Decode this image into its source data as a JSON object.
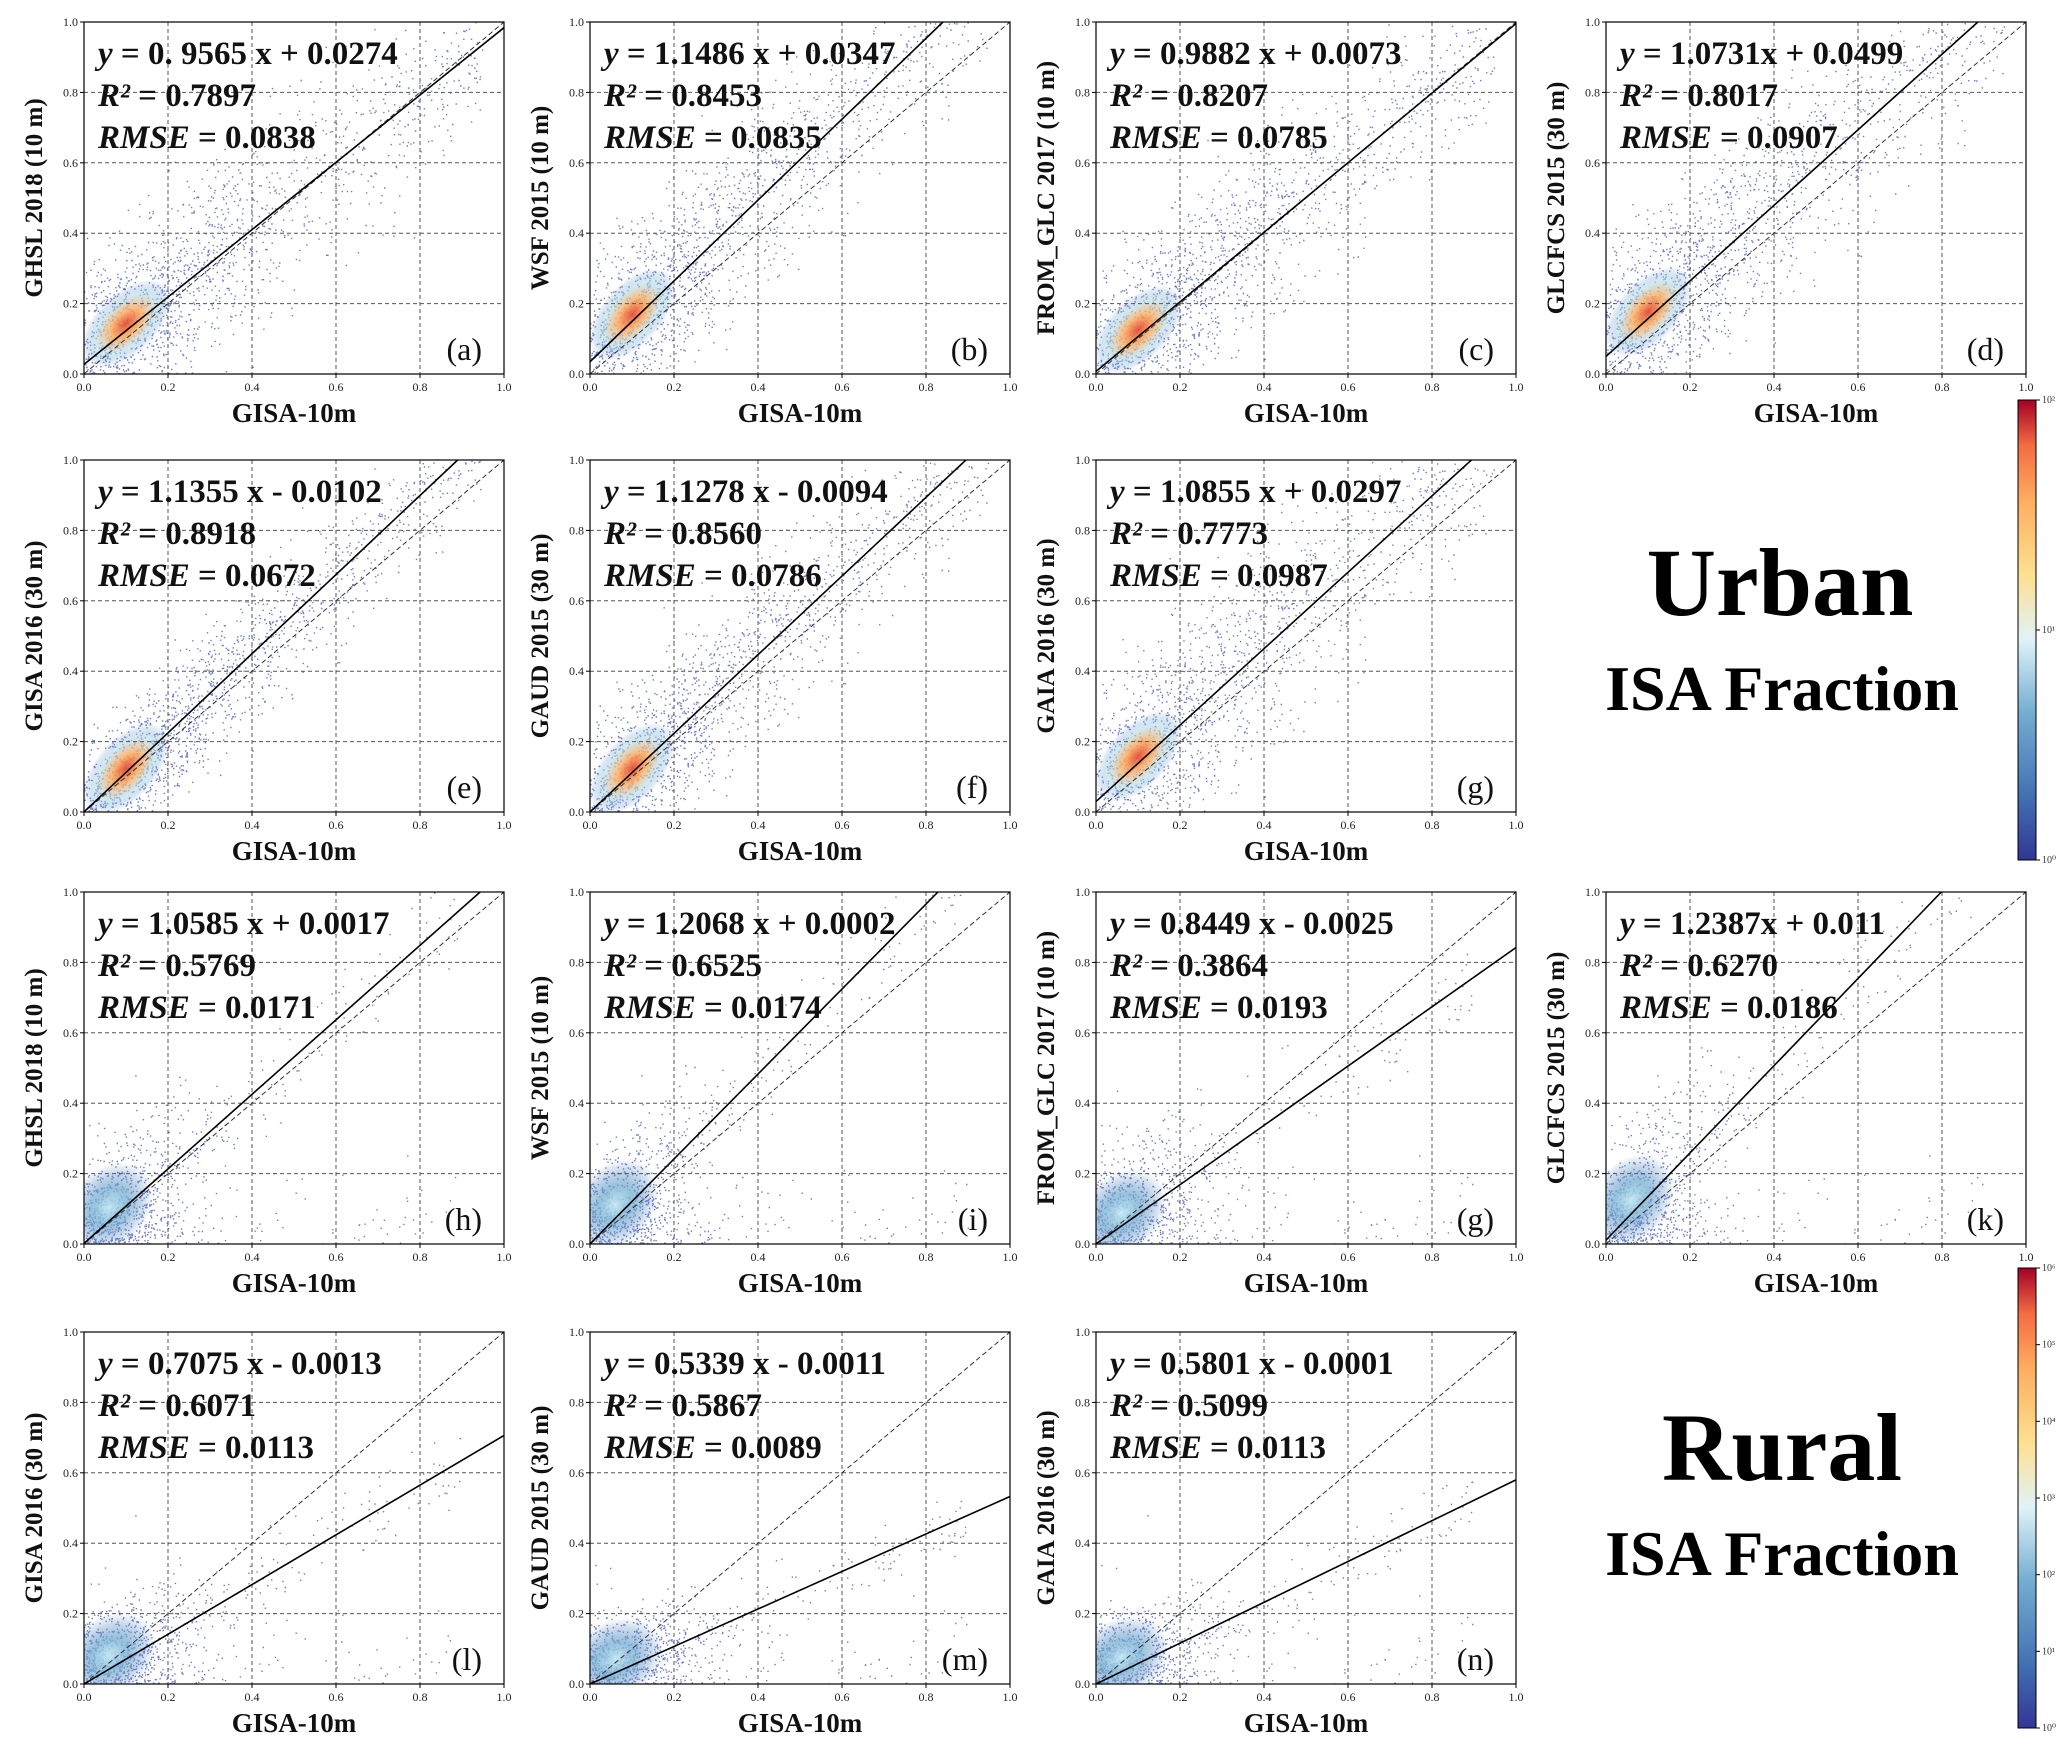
{
  "chart_data": [
    {
      "type": "scatter",
      "panel_label": "(a)",
      "ylabel": "GHSL 2018 (10 m)",
      "xlabel": "GISA-10m",
      "xlim": [
        0,
        1
      ],
      "ylim": [
        0,
        1
      ],
      "grid": true,
      "eq_lhs": "y",
      "eq_rhs": " = 0. 9565 x + 0.0274",
      "r2_lhs": "R²",
      "r2_rhs": " = 0.7897",
      "rmse_lhs": "RMSE",
      "rmse_rhs": " = 0.0838",
      "slope": 0.9565,
      "intercept": 0.0274,
      "density_group": "urban",
      "spread": 0.13
    },
    {
      "type": "scatter",
      "panel_label": "(b)",
      "ylabel": "WSF 2015 (10 m)",
      "xlabel": "GISA-10m",
      "xlim": [
        0,
        1
      ],
      "ylim": [
        0,
        1
      ],
      "grid": true,
      "eq_lhs": "y",
      "eq_rhs": " = 1.1486 x + 0.0347",
      "r2_lhs": "R²",
      "r2_rhs": " = 0.8453",
      "rmse_lhs": "RMSE",
      "rmse_rhs": " = 0.0835",
      "slope": 1.1486,
      "intercept": 0.0347,
      "density_group": "urban",
      "spread": 0.12
    },
    {
      "type": "scatter",
      "panel_label": "(c)",
      "ylabel": "FROM_GLC 2017 (10 m)",
      "xlabel": "GISA-10m",
      "xlim": [
        0,
        1
      ],
      "ylim": [
        0,
        1
      ],
      "grid": true,
      "eq_lhs": "y",
      "eq_rhs": " = 0.9882 x + 0.0073",
      "r2_lhs": "R²",
      "r2_rhs": " = 0.8207",
      "rmse_lhs": "RMSE",
      "rmse_rhs": " = 0.0785",
      "slope": 0.9882,
      "intercept": 0.0073,
      "density_group": "urban",
      "spread": 0.12
    },
    {
      "type": "scatter",
      "panel_label": "(d)",
      "ylabel": "GLCFCS 2015 (30 m)",
      "xlabel": "GISA-10m",
      "xlim": [
        0,
        1
      ],
      "ylim": [
        0,
        1
      ],
      "grid": true,
      "eq_lhs": "y",
      "eq_rhs": " = 1.0731x + 0.0499",
      "r2_lhs": "R²",
      "r2_rhs": " = 0.8017",
      "rmse_lhs": "RMSE",
      "rmse_rhs": " = 0.0907",
      "slope": 1.0731,
      "intercept": 0.0499,
      "density_group": "urban",
      "spread": 0.13
    },
    {
      "type": "scatter",
      "panel_label": "(e)",
      "ylabel": "GISA 2016 (30 m)",
      "xlabel": "GISA-10m",
      "xlim": [
        0,
        1
      ],
      "ylim": [
        0,
        1
      ],
      "grid": true,
      "eq_lhs": "y",
      "eq_rhs": " = 1.1355 x - 0.0102",
      "r2_lhs": "R²",
      "r2_rhs": " = 0.8918",
      "rmse_lhs": "RMSE",
      "rmse_rhs": " = 0.0672",
      "slope": 1.1355,
      "intercept": -0.0102,
      "density_group": "urban",
      "spread": 0.09
    },
    {
      "type": "scatter",
      "panel_label": "(f)",
      "ylabel": "GAUD 2015 (30 m)",
      "xlabel": "GISA-10m",
      "xlim": [
        0,
        1
      ],
      "ylim": [
        0,
        1
      ],
      "grid": true,
      "eq_lhs": "y",
      "eq_rhs": " = 1.1278 x - 0.0094",
      "r2_lhs": "R²",
      "r2_rhs": " = 0.8560",
      "rmse_lhs": "RMSE",
      "rmse_rhs": " = 0.0786",
      "slope": 1.1278,
      "intercept": -0.0094,
      "density_group": "urban",
      "spread": 0.11
    },
    {
      "type": "scatter",
      "panel_label": "(g)",
      "ylabel": "GAIA 2016 (30 m)",
      "xlabel": "GISA-10m",
      "xlim": [
        0,
        1
      ],
      "ylim": [
        0,
        1
      ],
      "grid": true,
      "eq_lhs": "y",
      "eq_rhs": " = 1.0855 x + 0.0297",
      "r2_lhs": "R²",
      "r2_rhs": " = 0.7773",
      "rmse_lhs": "RMSE",
      "rmse_rhs": " = 0.0987",
      "slope": 1.0855,
      "intercept": 0.0297,
      "density_group": "urban",
      "spread": 0.14
    },
    {
      "type": "scatter",
      "panel_label": "(h)",
      "ylabel": "GHSL 2018 (10 m)",
      "xlabel": "GISA-10m",
      "xlim": [
        0,
        1
      ],
      "ylim": [
        0,
        1
      ],
      "grid": true,
      "eq_lhs": "y",
      "eq_rhs": " = 1.0585 x + 0.0017",
      "r2_lhs": "R²",
      "r2_rhs": " = 0.5769",
      "rmse_lhs": "RMSE",
      "rmse_rhs": " = 0.0171",
      "slope": 1.0585,
      "intercept": 0.0017,
      "density_group": "rural",
      "spread": 0.07
    },
    {
      "type": "scatter",
      "panel_label": "(i)",
      "ylabel": "WSF 2015 (10 m)",
      "xlabel": "GISA-10m",
      "xlim": [
        0,
        1
      ],
      "ylim": [
        0,
        1
      ],
      "grid": true,
      "eq_lhs": "y",
      "eq_rhs": " = 1.2068 x + 0.0002",
      "r2_lhs": "R²",
      "r2_rhs": " = 0.6525",
      "rmse_lhs": "RMSE",
      "rmse_rhs": " = 0.0174",
      "slope": 1.2068,
      "intercept": 0.0002,
      "density_group": "rural",
      "spread": 0.07
    },
    {
      "type": "scatter",
      "panel_label": "(g)",
      "ylabel": "FROM_GLC 2017 (10 m)",
      "xlabel": "GISA-10m",
      "xlim": [
        0,
        1
      ],
      "ylim": [
        0,
        1
      ],
      "grid": true,
      "eq_lhs": "y",
      "eq_rhs": " = 0.8449 x - 0.0025",
      "r2_lhs": "R²",
      "r2_rhs": " = 0.3864",
      "rmse_lhs": "RMSE",
      "rmse_rhs": " = 0.0193",
      "slope": 0.8449,
      "intercept": -0.0025,
      "density_group": "rural",
      "spread": 0.08
    },
    {
      "type": "scatter",
      "panel_label": "(k)",
      "ylabel": "GLCFCS 2015 (30 m)",
      "xlabel": "GISA-10m",
      "xlim": [
        0,
        1
      ],
      "ylim": [
        0,
        1
      ],
      "grid": true,
      "eq_lhs": "y",
      "eq_rhs": " = 1.2387x + 0.011",
      "r2_lhs": "R²",
      "r2_rhs": " = 0.6270",
      "rmse_lhs": "RMSE",
      "rmse_rhs": " = 0.0186",
      "slope": 1.2387,
      "intercept": 0.011,
      "density_group": "rural",
      "spread": 0.08
    },
    {
      "type": "scatter",
      "panel_label": "(l)",
      "ylabel": "GISA 2016 (30 m)",
      "xlabel": "GISA-10m",
      "xlim": [
        0,
        1
      ],
      "ylim": [
        0,
        1
      ],
      "grid": true,
      "eq_lhs": "y",
      "eq_rhs": " = 0.7075 x - 0.0013",
      "r2_lhs": "R²",
      "r2_rhs": " = 0.6071",
      "rmse_lhs": "RMSE",
      "rmse_rhs": " = 0.0113",
      "slope": 0.7075,
      "intercept": -0.0013,
      "density_group": "rural",
      "spread": 0.06
    },
    {
      "type": "scatter",
      "panel_label": "(m)",
      "ylabel": "GAUD 2015 (30 m)",
      "xlabel": "GISA-10m",
      "xlim": [
        0,
        1
      ],
      "ylim": [
        0,
        1
      ],
      "grid": true,
      "eq_lhs": "y",
      "eq_rhs": " = 0.5339 x - 0.0011",
      "r2_lhs": "R²",
      "r2_rhs": " = 0.5867",
      "rmse_lhs": "RMSE",
      "rmse_rhs": " = 0.0089",
      "slope": 0.5339,
      "intercept": -0.0011,
      "density_group": "rural",
      "spread": 0.05
    },
    {
      "type": "scatter",
      "panel_label": "(n)",
      "ylabel": "GAIA 2016 (30 m)",
      "xlabel": "GISA-10m",
      "xlim": [
        0,
        1
      ],
      "ylim": [
        0,
        1
      ],
      "grid": true,
      "eq_lhs": "y",
      "eq_rhs": " = 0.5801 x - 0.0001",
      "r2_lhs": "R²",
      "r2_rhs": " = 0.5099",
      "rmse_lhs": "RMSE",
      "rmse_rhs": " = 0.0113",
      "slope": 0.5801,
      "intercept": -0.0001,
      "density_group": "rural",
      "spread": 0.05
    }
  ],
  "ticks": [
    "0.0",
    "0.2",
    "0.4",
    "0.6",
    "0.8",
    "1.0"
  ],
  "colorbars": [
    {
      "scale": "log",
      "ticks": [
        "10⁰",
        "10¹",
        "10²"
      ]
    },
    {
      "scale": "log",
      "ticks": [
        "10⁰",
        "10¹",
        "10²",
        "10³",
        "10⁴",
        "10⁵",
        "10⁶"
      ]
    }
  ],
  "group_labels": {
    "urban": {
      "title": "Urban",
      "subtitle": "ISA Fraction"
    },
    "rural": {
      "title": "Rural",
      "subtitle": "ISA Fraction"
    }
  },
  "colors": {
    "density_low": "#2c3e9e",
    "density_mid": "#9ecae1",
    "density_high": "#fdb863",
    "density_peak": "#d7301f",
    "grid": "#555555",
    "fit_line": "#000000"
  }
}
